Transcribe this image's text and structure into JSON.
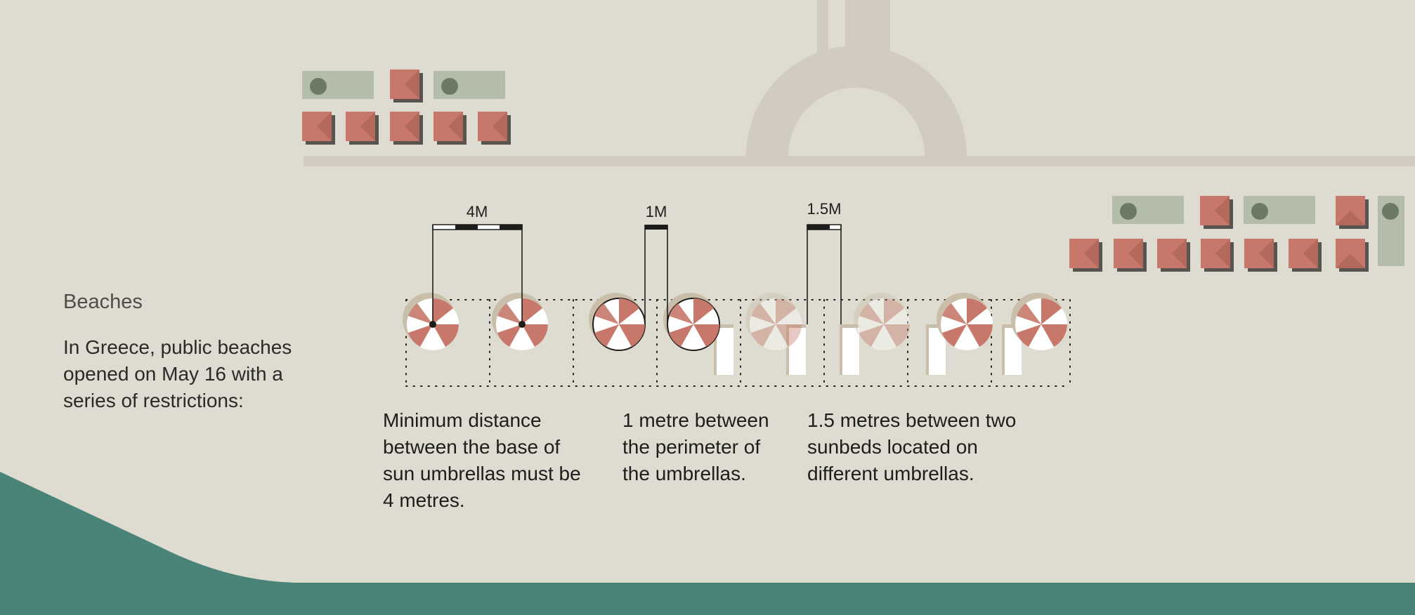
{
  "section": {
    "title": "Beaches",
    "intro": "In Greece, public beaches opened on May 16 with a series of restrictions:"
  },
  "rules": [
    {
      "label": "4M",
      "caption": "Minimum distance between the base of sun umbrellas must be 4 metres."
    },
    {
      "label": "1M",
      "caption": "1 metre between the perimeter of the umbrellas."
    },
    {
      "label": "1.5M",
      "caption": "1.5 metres between two sunbeds located on different umbrellas."
    }
  ],
  "colors": {
    "background": "#dedcd1",
    "sea": "#4a8479",
    "promenade": "#d2cbc2",
    "roof": "#c7786a",
    "roof_shadow": "#5a5450",
    "pool": "#b3bda9",
    "pool_dot": "#6c7a64",
    "umbrella_red": "#c7786a",
    "umbrella_white": "#ffffff",
    "umbrella_shadow": "#c9bea9",
    "sunbed": "#ffffff",
    "ink": "#1d1d1b"
  },
  "icons": [
    "umbrella-icon",
    "sunbed-icon",
    "house-icon",
    "pool-icon"
  ]
}
